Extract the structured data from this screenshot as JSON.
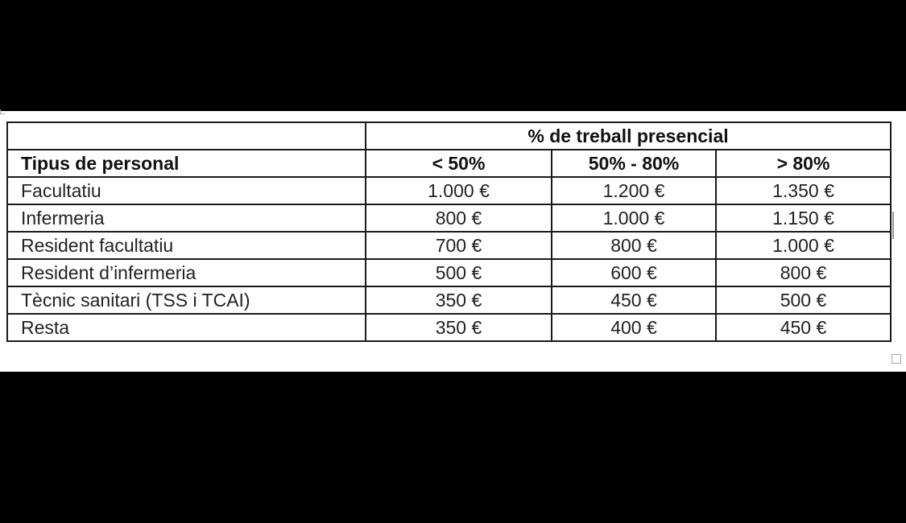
{
  "table": {
    "group_header": "% de treball presencial",
    "columns": [
      "Tipus de personal",
      "< 50%",
      "50% - 80%",
      "> 80%"
    ],
    "rows": [
      [
        "Facultatiu",
        "1.000 €",
        "1.200 €",
        "1.350 €"
      ],
      [
        "Infermeria",
        "800 €",
        "1.000 €",
        "1.150 €"
      ],
      [
        "Resident facultatiu",
        "700 €",
        "800 €",
        "1.000 €"
      ],
      [
        "Resident d’infermeria",
        "500 €",
        "600 €",
        "800 €"
      ],
      [
        "Tècnic sanitari (TSS i TCAI)",
        "350 €",
        "450 €",
        "500 €"
      ],
      [
        "Resta",
        "350 €",
        "400 €",
        "450 €"
      ]
    ]
  }
}
